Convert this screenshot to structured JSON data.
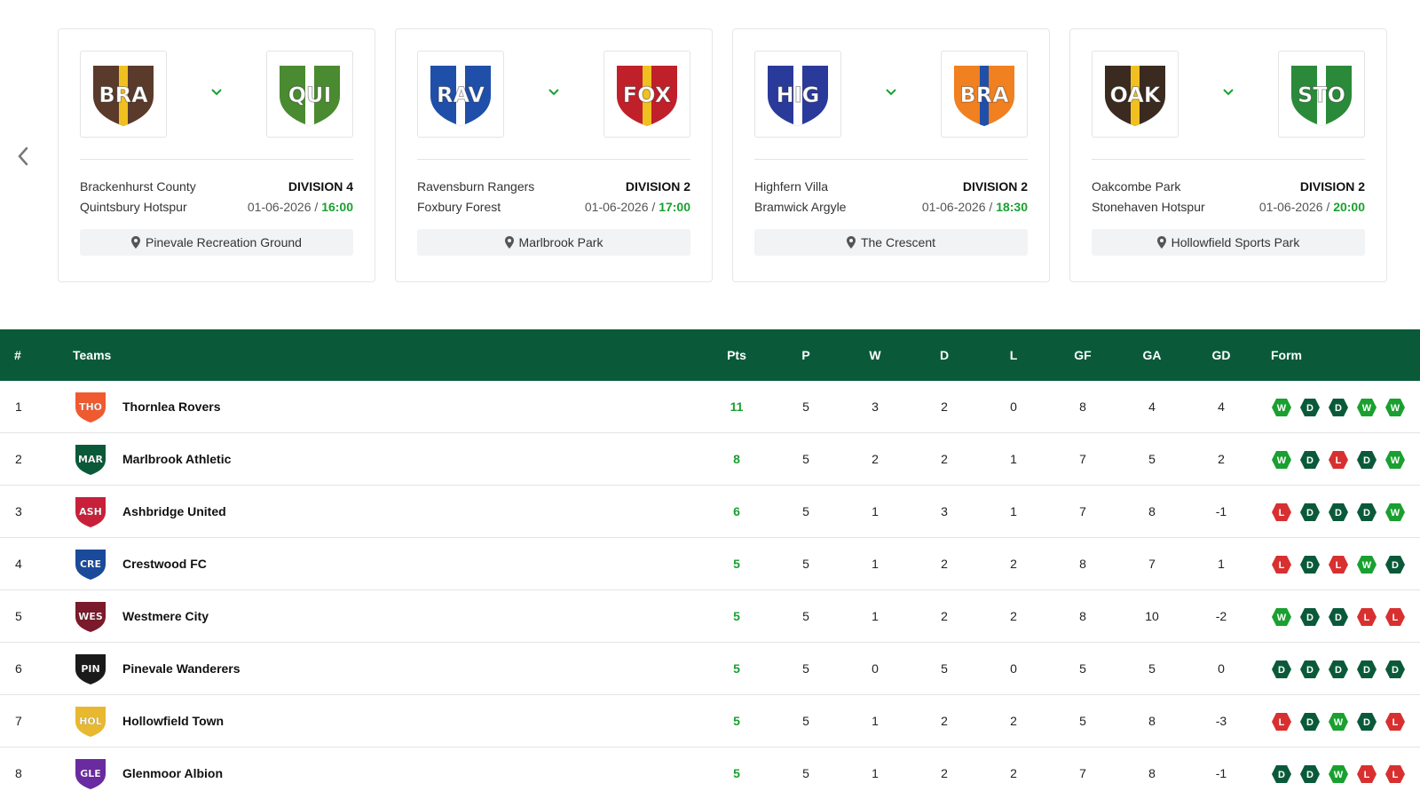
{
  "date_separator": "/",
  "fixtures": [
    {
      "home": {
        "abbr": "BRA",
        "name": "Brackenhurst County",
        "color": "#5a3a2a",
        "accent": "#f0c020"
      },
      "away": {
        "abbr": "QUI",
        "name": "Quintsbury Hotspur",
        "color": "#4a8a30",
        "accent": "#ffffff"
      },
      "division": "DIVISION 4",
      "date": "01-06-2026",
      "time": "16:00",
      "venue": "Pinevale Recreation Ground"
    },
    {
      "home": {
        "abbr": "RAV",
        "name": "Ravensburn Rangers",
        "color": "#1f4fa8",
        "accent": "#ffffff"
      },
      "away": {
        "abbr": "FOX",
        "name": "Foxbury Forest",
        "color": "#c0202a",
        "accent": "#f0c020"
      },
      "division": "DIVISION 2",
      "date": "01-06-2026",
      "time": "17:00",
      "venue": "Marlbrook Park"
    },
    {
      "home": {
        "abbr": "HIG",
        "name": "Highfern Villa",
        "color": "#2a3a9a",
        "accent": "#ffffff"
      },
      "away": {
        "abbr": "BRA",
        "name": "Bramwick Argyle",
        "color": "#f08020",
        "accent": "#1f4fa8"
      },
      "division": "DIVISION 2",
      "date": "01-06-2026",
      "time": "18:30",
      "venue": "The Crescent"
    },
    {
      "home": {
        "abbr": "OAK",
        "name": "Oakcombe Park",
        "color": "#3a2a20",
        "accent": "#f0c020"
      },
      "away": {
        "abbr": "STO",
        "name": "Stonehaven Hotspur",
        "color": "#2a8a3a",
        "accent": "#ffffff"
      },
      "division": "DIVISION 2",
      "date": "01-06-2026",
      "time": "20:00",
      "venue": "Hollowfield Sports Park"
    }
  ],
  "table": {
    "headers": [
      "#",
      "Teams",
      "Pts",
      "P",
      "W",
      "D",
      "L",
      "GF",
      "GA",
      "GD",
      "Form"
    ],
    "rows": [
      {
        "rank": 1,
        "abbr": "THO",
        "team": "Thornlea Rovers",
        "color": "#f05a30",
        "pts": 11,
        "p": 5,
        "w": 3,
        "d": 2,
        "l": 0,
        "gf": 8,
        "ga": 4,
        "gd": 4,
        "form": [
          "W",
          "D",
          "D",
          "W",
          "W"
        ]
      },
      {
        "rank": 2,
        "abbr": "MAR",
        "team": "Marlbrook Athletic",
        "color": "#0a5a3a",
        "pts": 8,
        "p": 5,
        "w": 2,
        "d": 2,
        "l": 1,
        "gf": 7,
        "ga": 5,
        "gd": 2,
        "form": [
          "W",
          "D",
          "L",
          "D",
          "W"
        ]
      },
      {
        "rank": 3,
        "abbr": "ASH",
        "team": "Ashbridge United",
        "color": "#c8203a",
        "pts": 6,
        "p": 5,
        "w": 1,
        "d": 3,
        "l": 1,
        "gf": 7,
        "ga": 8,
        "gd": -1,
        "form": [
          "L",
          "D",
          "D",
          "D",
          "W"
        ]
      },
      {
        "rank": 4,
        "abbr": "CRE",
        "team": "Crestwood FC",
        "color": "#1a4a9a",
        "pts": 5,
        "p": 5,
        "w": 1,
        "d": 2,
        "l": 2,
        "gf": 8,
        "ga": 7,
        "gd": 1,
        "form": [
          "L",
          "D",
          "L",
          "W",
          "D"
        ]
      },
      {
        "rank": 5,
        "abbr": "WES",
        "team": "Westmere City",
        "color": "#7a1a2a",
        "pts": 5,
        "p": 5,
        "w": 1,
        "d": 2,
        "l": 2,
        "gf": 8,
        "ga": 10,
        "gd": -2,
        "form": [
          "W",
          "D",
          "D",
          "L",
          "L"
        ]
      },
      {
        "rank": 6,
        "abbr": "PIN",
        "team": "Pinevale Wanderers",
        "color": "#1a1a1a",
        "pts": 5,
        "p": 5,
        "w": 0,
        "d": 5,
        "l": 0,
        "gf": 5,
        "ga": 5,
        "gd": 0,
        "form": [
          "D",
          "D",
          "D",
          "D",
          "D"
        ]
      },
      {
        "rank": 7,
        "abbr": "HOL",
        "team": "Hollowfield Town",
        "color": "#e8b830",
        "pts": 5,
        "p": 5,
        "w": 1,
        "d": 2,
        "l": 2,
        "gf": 5,
        "ga": 8,
        "gd": -3,
        "form": [
          "L",
          "D",
          "W",
          "D",
          "L"
        ]
      },
      {
        "rank": 8,
        "abbr": "GLE",
        "team": "Glenmoor Albion",
        "color": "#6a2aa0",
        "pts": 5,
        "p": 5,
        "w": 1,
        "d": 2,
        "l": 2,
        "gf": 7,
        "ga": 8,
        "gd": -1,
        "form": [
          "D",
          "D",
          "W",
          "L",
          "L"
        ]
      }
    ]
  }
}
